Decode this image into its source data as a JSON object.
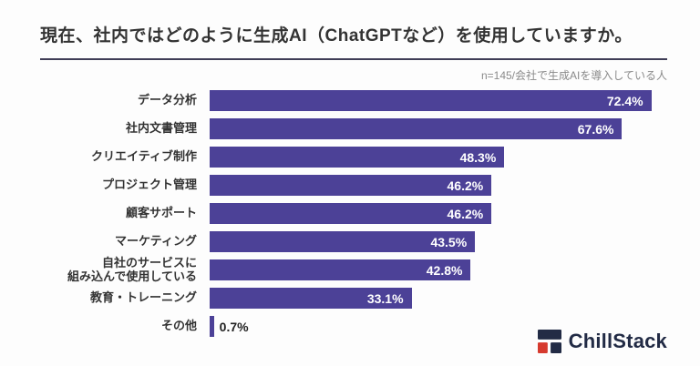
{
  "chart_data": {
    "type": "bar",
    "orientation": "horizontal",
    "title": "現在、社内ではどのように生成AI（ChatGPTなど）を使用していますか。",
    "note": "n=145/会社で生成AIを導入している人",
    "categories": [
      "データ分析",
      "社内文書管理",
      "クリエイティブ制作",
      "プロジェクト管理",
      "顧客サポート",
      "マーケティング",
      "自社のサービスに\n組み込んで使用している",
      "教育・トレーニング",
      "その他"
    ],
    "values": [
      72.4,
      67.6,
      48.3,
      46.2,
      46.2,
      43.5,
      42.8,
      33.1,
      0.7
    ],
    "value_suffix": "%",
    "bar_color": "#4c4197",
    "xlim": [
      0,
      75
    ],
    "grid": false,
    "legend": false
  },
  "logo": {
    "text": "ChillStack",
    "brand_color": "#222b45",
    "accent_color": "#d63a2e"
  }
}
